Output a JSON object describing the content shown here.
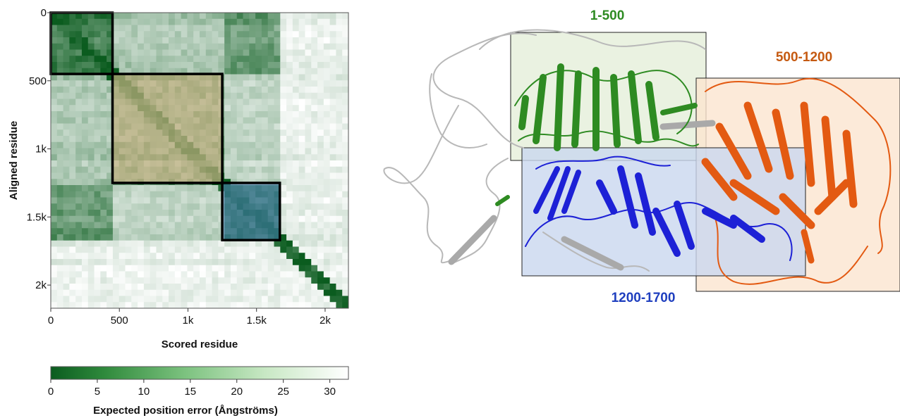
{
  "chart_data": [
    {
      "type": "heatmap",
      "title": "",
      "xlabel": "Scored residue",
      "ylabel": "Aligned residue",
      "xlim": [
        0,
        2170
      ],
      "ylim": [
        0,
        2170
      ],
      "x_ticks": [
        {
          "value": 0,
          "label": "0"
        },
        {
          "value": 500,
          "label": "500"
        },
        {
          "value": 1000,
          "label": "1k"
        },
        {
          "value": 1500,
          "label": "1.5k"
        },
        {
          "value": 2000,
          "label": "2k"
        }
      ],
      "y_ticks": [
        {
          "value": 0,
          "label": "0"
        },
        {
          "value": 500,
          "label": "500"
        },
        {
          "value": 1000,
          "label": "1k"
        },
        {
          "value": 1500,
          "label": "1.5k"
        },
        {
          "value": 2000,
          "label": "2k"
        }
      ],
      "colorbar": {
        "label": "Expected position error (Ångströms)",
        "range": [
          0,
          32
        ],
        "ticks": [
          0,
          5,
          10,
          15,
          20,
          25,
          30
        ],
        "low_color": "#0b5c1f",
        "high_color": "#ffffff"
      },
      "domain_boxes": [
        {
          "id": "1-500",
          "start": 0,
          "end": 450,
          "fill": "",
          "stroke": "#000000"
        },
        {
          "id": "500-1200",
          "start": 450,
          "end": 1250,
          "fill": "#f5c89a",
          "stroke": "#000000"
        },
        {
          "id": "1200-1700",
          "start": 1250,
          "end": 1670,
          "fill": "#4a7fc0",
          "stroke": "#000000"
        }
      ]
    },
    {
      "type": "diagram",
      "regions": [
        {
          "label": "1-500",
          "color": "#2e8b22"
        },
        {
          "label": "500-1200",
          "color": "#c55a11"
        },
        {
          "label": "1200-1700",
          "color": "#1f3fbf"
        }
      ]
    }
  ]
}
